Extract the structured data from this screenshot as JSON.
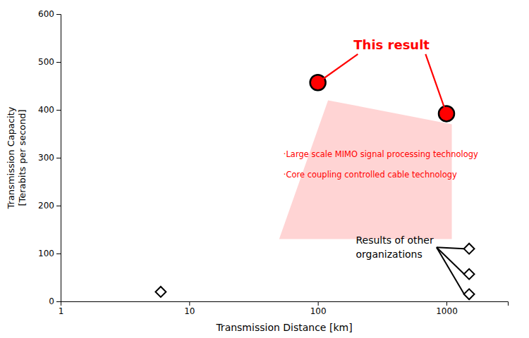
{
  "chart_data": {
    "type": "scatter",
    "xlabel": "Transmission Distance [km]",
    "ylabel": "Transmission Capacity\n[Terabits per second]",
    "log": "x",
    "xlim": [
      1,
      3000
    ],
    "xticks": [
      1,
      10,
      100,
      1000
    ],
    "ylim": [
      0,
      600
    ],
    "yticks": [
      0,
      100,
      200,
      300,
      400,
      500,
      600
    ],
    "grid": false,
    "series": [
      {
        "name": "This result",
        "color": "#ff0000",
        "marker": "circle",
        "x": [
          100,
          1000
        ],
        "values": [
          457,
          392
        ]
      },
      {
        "name": "Results of other\norganizations",
        "color": "#ffffff",
        "marker": "diamond",
        "x": [
          6,
          1500,
          1500,
          1500
        ],
        "values": [
          20,
          110,
          57,
          15
        ]
      }
    ],
    "region": {
      "x": [
        50,
        120,
        1100,
        1100,
        50
      ],
      "y": [
        130,
        420,
        370,
        130,
        130
      ],
      "color": "#ffcccc"
    },
    "annotations": [
      {
        "text": "·Large scale MIMO signal processing technology",
        "color": "#ff0000"
      },
      {
        "text": "·Core coupling controlled cable technology",
        "color": "#ff0000"
      }
    ]
  }
}
